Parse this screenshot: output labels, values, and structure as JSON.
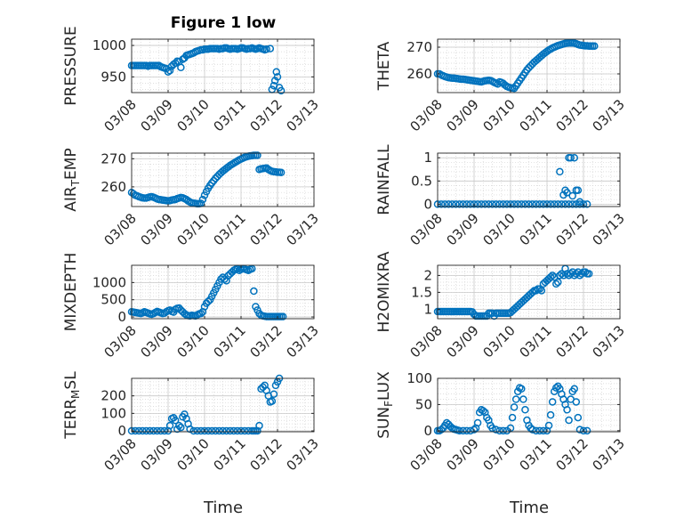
{
  "figure": {
    "title": "Figure 1 low",
    "xlabel": "Time"
  },
  "chart_data": [
    {
      "type": "scatter",
      "ylabel": "PRESSURE",
      "xlim": [
        0,
        5
      ],
      "ylim": [
        925,
        1010
      ],
      "yticks": [
        950,
        1000
      ],
      "grid": true,
      "color": "#0072BD",
      "x": [
        0.0,
        0.05,
        0.1,
        0.15,
        0.2,
        0.25,
        0.3,
        0.35,
        0.4,
        0.45,
        0.5,
        0.55,
        0.6,
        0.65,
        0.7,
        0.75,
        0.8,
        0.85,
        0.9,
        0.95,
        1.0,
        1.05,
        1.1,
        1.15,
        1.2,
        1.25,
        1.3,
        1.35,
        1.4,
        1.45,
        1.5,
        1.55,
        1.6,
        1.65,
        1.7,
        1.75,
        1.8,
        1.85,
        1.9,
        1.95,
        2.0,
        2.05,
        2.1,
        2.15,
        2.2,
        2.25,
        2.3,
        2.35,
        2.4,
        2.45,
        2.5,
        2.55,
        2.6,
        2.65,
        2.7,
        2.75,
        2.8,
        2.85,
        2.9,
        2.95,
        3.0,
        3.05,
        3.1,
        3.15,
        3.2,
        3.25,
        3.3,
        3.35,
        3.4,
        3.45,
        3.5,
        3.55,
        3.6,
        3.65,
        3.7,
        3.8,
        3.85,
        3.9,
        3.93,
        3.97,
        4.0,
        4.05,
        4.1
      ],
      "y": [
        968,
        968,
        968,
        968,
        968,
        968,
        968,
        968,
        968,
        967,
        968,
        968,
        968,
        968,
        968,
        968,
        966,
        965,
        964,
        963,
        958,
        960,
        967,
        970,
        972,
        975,
        974,
        965,
        978,
        980,
        984,
        985,
        986,
        987,
        988,
        990,
        991,
        992,
        993,
        993,
        994,
        994,
        994,
        995,
        995,
        995,
        995,
        995,
        994,
        995,
        995,
        996,
        996,
        995,
        994,
        995,
        995,
        995,
        994,
        995,
        996,
        996,
        995,
        994,
        995,
        995,
        996,
        995,
        994,
        995,
        996,
        995,
        994,
        993,
        994,
        995,
        930,
        936,
        944,
        958,
        950,
        933,
        928
      ]
    },
    {
      "type": "scatter",
      "ylabel": "THETA",
      "xlim": [
        0,
        5
      ],
      "ylim": [
        253,
        273
      ],
      "yticks": [
        260,
        270
      ],
      "grid": true,
      "color": "#0072BD",
      "x": [
        0.0,
        0.05,
        0.1,
        0.15,
        0.2,
        0.25,
        0.3,
        0.35,
        0.4,
        0.45,
        0.5,
        0.55,
        0.6,
        0.65,
        0.7,
        0.75,
        0.8,
        0.85,
        0.9,
        0.95,
        1.0,
        1.05,
        1.1,
        1.15,
        1.2,
        1.25,
        1.3,
        1.35,
        1.4,
        1.45,
        1.5,
        1.55,
        1.6,
        1.65,
        1.7,
        1.75,
        1.8,
        1.85,
        1.9,
        1.95,
        2.0,
        2.05,
        2.1,
        2.15,
        2.2,
        2.25,
        2.3,
        2.35,
        2.4,
        2.45,
        2.5,
        2.55,
        2.6,
        2.65,
        2.7,
        2.75,
        2.8,
        2.85,
        2.9,
        2.95,
        3.0,
        3.05,
        3.1,
        3.15,
        3.2,
        3.25,
        3.3,
        3.35,
        3.4,
        3.45,
        3.5,
        3.55,
        3.6,
        3.65,
        3.7,
        3.75,
        3.8,
        3.85,
        3.9,
        3.95,
        4.0,
        4.05,
        4.1,
        4.15,
        4.2,
        4.25,
        4.3
      ],
      "y": [
        260,
        260,
        259.6,
        259.3,
        259,
        258.8,
        258.6,
        258.5,
        258.4,
        258.4,
        258.3,
        258.2,
        258.1,
        258,
        258,
        257.9,
        257.8,
        257.7,
        257.6,
        257.5,
        257.4,
        257.3,
        257.2,
        257.1,
        257,
        257.2,
        257.4,
        257.5,
        257.6,
        257.5,
        257.2,
        256.8,
        256.5,
        256.2,
        257,
        256.8,
        256.4,
        255.8,
        255.3,
        255,
        254.8,
        254.7,
        254.6,
        255.5,
        256.5,
        257.5,
        258.5,
        259.5,
        260.5,
        261.5,
        262.3,
        263,
        263.7,
        264.4,
        265,
        265.6,
        266.2,
        266.8,
        267.4,
        267.9,
        268.4,
        268.9,
        269.3,
        269.7,
        270,
        270.3,
        270.6,
        270.8,
        271,
        271.2,
        271.4,
        271.5,
        271.6,
        271.6,
        271.6,
        271.5,
        271.3,
        271,
        270.8,
        270.7,
        270.6,
        270.5,
        270.5,
        270.4,
        270.4,
        270.4,
        270.4
      ]
    },
    {
      "type": "scatter",
      "ylabel": "AIR_TEMP",
      "xlim": [
        0,
        5
      ],
      "ylim": [
        253,
        272
      ],
      "yticks": [
        260,
        270
      ],
      "grid": true,
      "color": "#0072BD",
      "x": [
        0.0,
        0.05,
        0.1,
        0.15,
        0.2,
        0.25,
        0.3,
        0.35,
        0.4,
        0.45,
        0.5,
        0.55,
        0.6,
        0.65,
        0.7,
        0.75,
        0.8,
        0.85,
        0.9,
        0.95,
        1.0,
        1.05,
        1.1,
        1.15,
        1.2,
        1.25,
        1.3,
        1.35,
        1.4,
        1.45,
        1.5,
        1.55,
        1.6,
        1.65,
        1.7,
        1.75,
        1.8,
        1.85,
        1.9,
        1.95,
        2.0,
        2.05,
        2.1,
        2.15,
        2.2,
        2.25,
        2.3,
        2.35,
        2.4,
        2.45,
        2.5,
        2.55,
        2.6,
        2.65,
        2.7,
        2.75,
        2.8,
        2.85,
        2.9,
        2.95,
        3.0,
        3.05,
        3.1,
        3.15,
        3.2,
        3.25,
        3.3,
        3.35,
        3.4,
        3.45,
        3.5,
        3.55,
        3.6,
        3.65,
        3.7,
        3.75,
        3.8,
        3.85,
        3.9,
        3.95,
        4.0,
        4.05,
        4.1
      ],
      "y": [
        258,
        257.5,
        257,
        256.8,
        256.5,
        256.3,
        256.1,
        256,
        256,
        256.2,
        256.4,
        256.5,
        256.3,
        256,
        255.7,
        255.5,
        255.4,
        255.3,
        255.2,
        255.1,
        255,
        255.1,
        255.3,
        255.4,
        255.5,
        255.8,
        256,
        256.2,
        256.1,
        255.8,
        255.5,
        255,
        254.6,
        254.3,
        254.2,
        254.1,
        254,
        254,
        254.1,
        255.5,
        257,
        258.3,
        259.5,
        260.5,
        261.4,
        262.2,
        263,
        263.7,
        264.4,
        265,
        265.6,
        266.1,
        266.6,
        267.1,
        267.6,
        268,
        268.4,
        268.8,
        269.2,
        269.6,
        269.9,
        270.2,
        270.5,
        270.7,
        270.9,
        271,
        271.1,
        271.2,
        271.2,
        271.2,
        266.2,
        266.4,
        266.5,
        266.6,
        266.7,
        266.2,
        265.8,
        265.5,
        265.4,
        265.3,
        265.2,
        265.2,
        265.1
      ]
    },
    {
      "type": "scatter",
      "ylabel": "RAINFALL",
      "xlim": [
        0,
        5
      ],
      "ylim": [
        -0.05,
        1.1
      ],
      "yticks": [
        0,
        0.5,
        1
      ],
      "ytick_labels": [
        "0",
        "0.5",
        "1"
      ],
      "grid": true,
      "color": "#0072BD",
      "x": [
        0.0,
        0.1,
        0.2,
        0.3,
        0.4,
        0.5,
        0.6,
        0.7,
        0.8,
        0.9,
        1.0,
        1.1,
        1.2,
        1.3,
        1.4,
        1.5,
        1.6,
        1.7,
        1.8,
        1.9,
        2.0,
        2.1,
        2.2,
        2.3,
        2.4,
        2.5,
        2.6,
        2.7,
        2.8,
        2.9,
        3.0,
        3.1,
        3.2,
        3.3,
        3.4,
        3.5,
        3.6,
        3.7,
        3.8,
        3.9,
        4.0,
        4.1,
        3.35,
        3.45,
        3.5,
        3.55,
        3.6,
        3.65,
        3.7,
        3.75,
        3.8,
        3.85,
        3.9
      ],
      "y": [
        0,
        0,
        0,
        0,
        0,
        0,
        0,
        0,
        0,
        0,
        0,
        0,
        0,
        0,
        0,
        0,
        0,
        0,
        0,
        0,
        0,
        0,
        0,
        0,
        0,
        0,
        0,
        0,
        0,
        0,
        0,
        0,
        0,
        0,
        0,
        0,
        0,
        0,
        0,
        0,
        0,
        0,
        0.7,
        0.2,
        0.3,
        0.25,
        1,
        1,
        0.18,
        1,
        0.3,
        0.3,
        0.05
      ]
    },
    {
      "type": "scatter",
      "ylabel": "MIXDEPTH",
      "xlim": [
        0,
        5
      ],
      "ylim": [
        -50,
        1500
      ],
      "yticks": [
        0,
        500,
        1000
      ],
      "grid": true,
      "color": "#0072BD",
      "x": [
        0.0,
        0.05,
        0.1,
        0.15,
        0.2,
        0.25,
        0.3,
        0.35,
        0.4,
        0.45,
        0.5,
        0.55,
        0.6,
        0.65,
        0.7,
        0.75,
        0.8,
        0.85,
        0.9,
        0.95,
        1.0,
        1.05,
        1.1,
        1.15,
        1.2,
        1.25,
        1.3,
        1.35,
        1.4,
        1.45,
        1.5,
        1.55,
        1.6,
        1.65,
        1.7,
        1.75,
        1.8,
        1.85,
        1.9,
        1.95,
        2.0,
        2.05,
        2.1,
        2.15,
        2.2,
        2.25,
        2.3,
        2.35,
        2.4,
        2.45,
        2.5,
        2.55,
        2.6,
        2.65,
        2.7,
        2.75,
        2.8,
        2.85,
        2.9,
        2.95,
        3.0,
        3.05,
        3.1,
        3.15,
        3.2,
        3.25,
        3.3,
        3.35,
        3.4,
        3.45,
        3.5,
        3.55,
        3.6,
        3.65,
        3.7,
        3.75,
        3.8,
        3.85,
        3.9,
        3.95,
        4.0,
        4.05,
        4.1,
        4.15
      ],
      "y": [
        150,
        140,
        130,
        120,
        110,
        100,
        120,
        150,
        130,
        110,
        90,
        80,
        100,
        130,
        160,
        140,
        120,
        100,
        110,
        150,
        180,
        200,
        160,
        140,
        220,
        250,
        260,
        200,
        150,
        100,
        60,
        40,
        30,
        50,
        40,
        30,
        60,
        90,
        100,
        150,
        300,
        400,
        450,
        500,
        600,
        700,
        800,
        900,
        1000,
        1100,
        1150,
        1100,
        1050,
        1200,
        1250,
        1300,
        1350,
        1380,
        1400,
        1350,
        1380,
        1400,
        1390,
        1370,
        1350,
        1380,
        1400,
        750,
        300,
        200,
        100,
        50,
        30,
        20,
        10,
        10,
        10,
        10,
        10,
        10,
        10,
        10,
        10,
        10
      ]
    },
    {
      "type": "scatter",
      "ylabel": "H2OMIXRA",
      "xlim": [
        0,
        5
      ],
      "ylim": [
        0.72,
        2.3
      ],
      "yticks": [
        1,
        1.5,
        2
      ],
      "ytick_labels": [
        "1",
        "1.5",
        "2"
      ],
      "grid": true,
      "color": "#0072BD",
      "x": [
        0.0,
        0.05,
        0.1,
        0.15,
        0.2,
        0.25,
        0.3,
        0.35,
        0.4,
        0.45,
        0.5,
        0.55,
        0.6,
        0.65,
        0.7,
        0.75,
        0.8,
        0.85,
        0.9,
        0.95,
        1.0,
        1.05,
        1.1,
        1.15,
        1.2,
        1.25,
        1.3,
        1.35,
        1.4,
        1.45,
        1.5,
        1.55,
        1.6,
        1.65,
        1.7,
        1.75,
        1.8,
        1.85,
        1.9,
        1.95,
        2.0,
        2.05,
        2.1,
        2.15,
        2.2,
        2.25,
        2.3,
        2.35,
        2.4,
        2.45,
        2.5,
        2.55,
        2.6,
        2.65,
        2.7,
        2.75,
        2.8,
        2.85,
        2.9,
        2.95,
        3.0,
        3.05,
        3.1,
        3.15,
        3.2,
        3.25,
        3.3,
        3.35,
        3.4,
        3.45,
        3.5,
        3.55,
        3.6,
        3.65,
        3.7,
        3.75,
        3.8,
        3.85,
        3.9,
        3.95,
        4.0,
        4.05,
        4.1,
        4.15
      ],
      "y": [
        0.93,
        0.93,
        0.93,
        0.93,
        0.93,
        0.93,
        0.93,
        0.93,
        0.93,
        0.93,
        0.93,
        0.93,
        0.93,
        0.93,
        0.93,
        0.93,
        0.93,
        0.93,
        0.93,
        0.92,
        0.85,
        0.8,
        0.8,
        0.8,
        0.8,
        0.8,
        0.8,
        0.8,
        0.88,
        0.88,
        0.88,
        0.8,
        0.88,
        0.88,
        0.88,
        0.88,
        0.88,
        0.88,
        0.88,
        0.88,
        0.9,
        0.95,
        1.0,
        1.05,
        1.1,
        1.15,
        1.2,
        1.25,
        1.3,
        1.35,
        1.4,
        1.45,
        1.5,
        1.55,
        1.55,
        1.6,
        1.6,
        1.55,
        1.75,
        1.8,
        1.85,
        1.9,
        1.95,
        2.0,
        1.95,
        1.75,
        1.8,
        2.0,
        2.05,
        2.0,
        2.2,
        2.05,
        2.0,
        2.05,
        2.1,
        2.0,
        2.05,
        2.1,
        2.0,
        2.05,
        2.1,
        2.1,
        2.05,
        2.05
      ]
    },
    {
      "type": "scatter",
      "ylabel": "TERR_MSL",
      "xlim": [
        0,
        5
      ],
      "ylim": [
        -5,
        300
      ],
      "yticks": [
        0,
        100,
        200
      ],
      "grid": true,
      "color": "#0072BD",
      "x": [
        0.0,
        0.1,
        0.2,
        0.3,
        0.4,
        0.5,
        0.6,
        0.7,
        0.8,
        0.9,
        1.0,
        1.05,
        1.1,
        1.15,
        1.2,
        1.25,
        1.3,
        1.35,
        1.4,
        1.45,
        1.5,
        1.55,
        1.6,
        1.7,
        1.8,
        1.9,
        2.0,
        2.1,
        2.2,
        2.3,
        2.4,
        2.5,
        2.6,
        2.7,
        2.8,
        2.9,
        3.0,
        3.1,
        3.2,
        3.3,
        3.35,
        3.4,
        3.45,
        3.5,
        3.55,
        3.6,
        3.65,
        3.7,
        3.75,
        3.8,
        3.85,
        3.9,
        3.95,
        4.0,
        4.05
      ],
      "y": [
        0,
        0,
        0,
        0,
        0,
        0,
        0,
        0,
        0,
        0,
        0,
        30,
        70,
        75,
        60,
        10,
        30,
        20,
        80,
        95,
        70,
        40,
        10,
        0,
        0,
        0,
        0,
        0,
        0,
        0,
        0,
        0,
        0,
        0,
        0,
        0,
        0,
        0,
        0,
        0,
        0,
        0,
        0,
        30,
        240,
        250,
        260,
        230,
        200,
        165,
        170,
        210,
        260,
        280,
        300
      ]
    },
    {
      "type": "scatter",
      "ylabel": "SUN_FLUX",
      "xlim": [
        0,
        5
      ],
      "ylim": [
        -2,
        100
      ],
      "yticks": [
        0,
        50,
        100
      ],
      "grid": true,
      "color": "#0072BD",
      "x": [
        0.0,
        0.05,
        0.1,
        0.15,
        0.2,
        0.25,
        0.3,
        0.35,
        0.4,
        0.45,
        0.5,
        0.55,
        0.6,
        0.7,
        0.8,
        0.9,
        1.0,
        1.05,
        1.1,
        1.15,
        1.2,
        1.25,
        1.3,
        1.35,
        1.4,
        1.45,
        1.5,
        1.6,
        1.7,
        1.8,
        1.9,
        2.0,
        2.05,
        2.1,
        2.15,
        2.2,
        2.25,
        2.3,
        2.35,
        2.4,
        2.45,
        2.5,
        2.55,
        2.6,
        2.7,
        2.8,
        2.9,
        3.0,
        3.05,
        3.1,
        3.15,
        3.2,
        3.25,
        3.3,
        3.35,
        3.4,
        3.45,
        3.5,
        3.55,
        3.6,
        3.65,
        3.7,
        3.75,
        3.8,
        3.85,
        3.9,
        4.0,
        4.1
      ],
      "y": [
        0,
        0,
        2,
        5,
        10,
        15,
        12,
        8,
        5,
        3,
        2,
        1,
        0,
        0,
        0,
        0,
        2,
        5,
        15,
        35,
        40,
        38,
        35,
        25,
        20,
        10,
        5,
        2,
        0,
        0,
        0,
        5,
        25,
        45,
        60,
        75,
        82,
        80,
        60,
        40,
        20,
        10,
        5,
        2,
        0,
        0,
        0,
        0,
        10,
        30,
        55,
        75,
        82,
        85,
        80,
        70,
        60,
        50,
        40,
        20,
        60,
        75,
        80,
        55,
        25,
        2,
        0,
        0
      ]
    }
  ],
  "x_tick_labels": [
    "03/08",
    "03/09",
    "03/10",
    "03/11",
    "03/12",
    "03/13"
  ]
}
